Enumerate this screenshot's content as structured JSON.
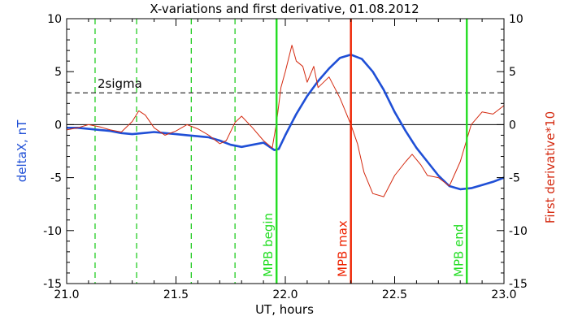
{
  "chart_data": {
    "type": "line",
    "title": "X-variations and first derivative, 01.08.2012",
    "xlabel": "UT, hours",
    "ylabel_left": "deltaX, nT",
    "ylabel_right": "First derivative*10",
    "xlim": [
      21.0,
      23.0
    ],
    "ylim_left": [
      -15,
      10
    ],
    "ylim_right": [
      -15,
      10
    ],
    "x_ticks": [
      "21.0",
      "21.5",
      "22.0",
      "22.5",
      "23.0"
    ],
    "y_ticks_left": [
      "10",
      "5",
      "0",
      "-5",
      "-10",
      "-15"
    ],
    "y_ticks_right": [
      "10",
      "5",
      "0",
      "-5",
      "-10",
      "-15"
    ],
    "colors": {
      "deltaX": "#1f4fd6",
      "derivative": "#d42a10",
      "mpb_begin_end": "#22dd22",
      "mpb_max": "#ee2200",
      "dashed_green": "#22cc22",
      "axes": "#000000"
    },
    "sigma_label": "2sigma",
    "sigma_level": 3,
    "zero_line": 0,
    "dashed_markers_x": [
      21.13,
      21.32,
      21.57,
      21.77
    ],
    "markers": [
      {
        "label": "MPB begin",
        "x": 21.96
      },
      {
        "label": "MPB max",
        "x": 22.3
      },
      {
        "label": "MPB end",
        "x": 22.83
      }
    ],
    "series": [
      {
        "name": "deltaX, nT",
        "axis": "left",
        "x": [
          21.0,
          21.05,
          21.1,
          21.15,
          21.2,
          21.25,
          21.3,
          21.35,
          21.4,
          21.45,
          21.5,
          21.55,
          21.6,
          21.65,
          21.7,
          21.75,
          21.8,
          21.85,
          21.9,
          21.95,
          21.97,
          22.0,
          22.05,
          22.1,
          22.15,
          22.2,
          22.25,
          22.3,
          22.35,
          22.4,
          22.45,
          22.5,
          22.55,
          22.6,
          22.65,
          22.7,
          22.75,
          22.8,
          22.85,
          22.9,
          22.95,
          23.0
        ],
        "values": [
          -0.3,
          -0.3,
          -0.4,
          -0.5,
          -0.6,
          -0.8,
          -0.9,
          -0.8,
          -0.7,
          -0.8,
          -0.9,
          -1.0,
          -1.1,
          -1.2,
          -1.5,
          -1.9,
          -2.1,
          -1.9,
          -1.7,
          -2.4,
          -2.3,
          -1.0,
          1.0,
          2.7,
          4.1,
          5.3,
          6.3,
          6.6,
          6.2,
          5.0,
          3.3,
          1.2,
          -0.6,
          -2.2,
          -3.5,
          -4.8,
          -5.8,
          -6.1,
          -6.0,
          -5.7,
          -5.4,
          -5.0
        ]
      },
      {
        "name": "First derivative*10",
        "axis": "right",
        "x": [
          21.0,
          21.05,
          21.1,
          21.15,
          21.2,
          21.25,
          21.3,
          21.33,
          21.36,
          21.4,
          21.45,
          21.5,
          21.55,
          21.6,
          21.65,
          21.7,
          21.73,
          21.77,
          21.8,
          21.85,
          21.9,
          21.94,
          21.96,
          21.98,
          22.0,
          22.03,
          22.05,
          22.08,
          22.1,
          22.13,
          22.15,
          22.2,
          22.25,
          22.3,
          22.33,
          22.36,
          22.4,
          22.45,
          22.5,
          22.55,
          22.58,
          22.62,
          22.65,
          22.7,
          22.75,
          22.8,
          22.85,
          22.9,
          22.95,
          23.0
        ],
        "values": [
          -0.5,
          -0.3,
          0.0,
          -0.2,
          -0.5,
          -0.7,
          0.3,
          1.3,
          0.9,
          -0.3,
          -1.0,
          -0.6,
          0.0,
          -0.4,
          -1.0,
          -1.8,
          -1.5,
          0.2,
          0.8,
          -0.3,
          -1.5,
          -2.2,
          0.2,
          3.5,
          5.0,
          7.5,
          6.0,
          5.5,
          4.0,
          5.5,
          3.5,
          4.5,
          2.5,
          0.0,
          -1.8,
          -4.5,
          -6.5,
          -6.8,
          -4.8,
          -3.5,
          -2.8,
          -3.8,
          -4.8,
          -5.0,
          -5.8,
          -3.5,
          0.0,
          1.2,
          1.0,
          1.8
        ]
      }
    ]
  }
}
